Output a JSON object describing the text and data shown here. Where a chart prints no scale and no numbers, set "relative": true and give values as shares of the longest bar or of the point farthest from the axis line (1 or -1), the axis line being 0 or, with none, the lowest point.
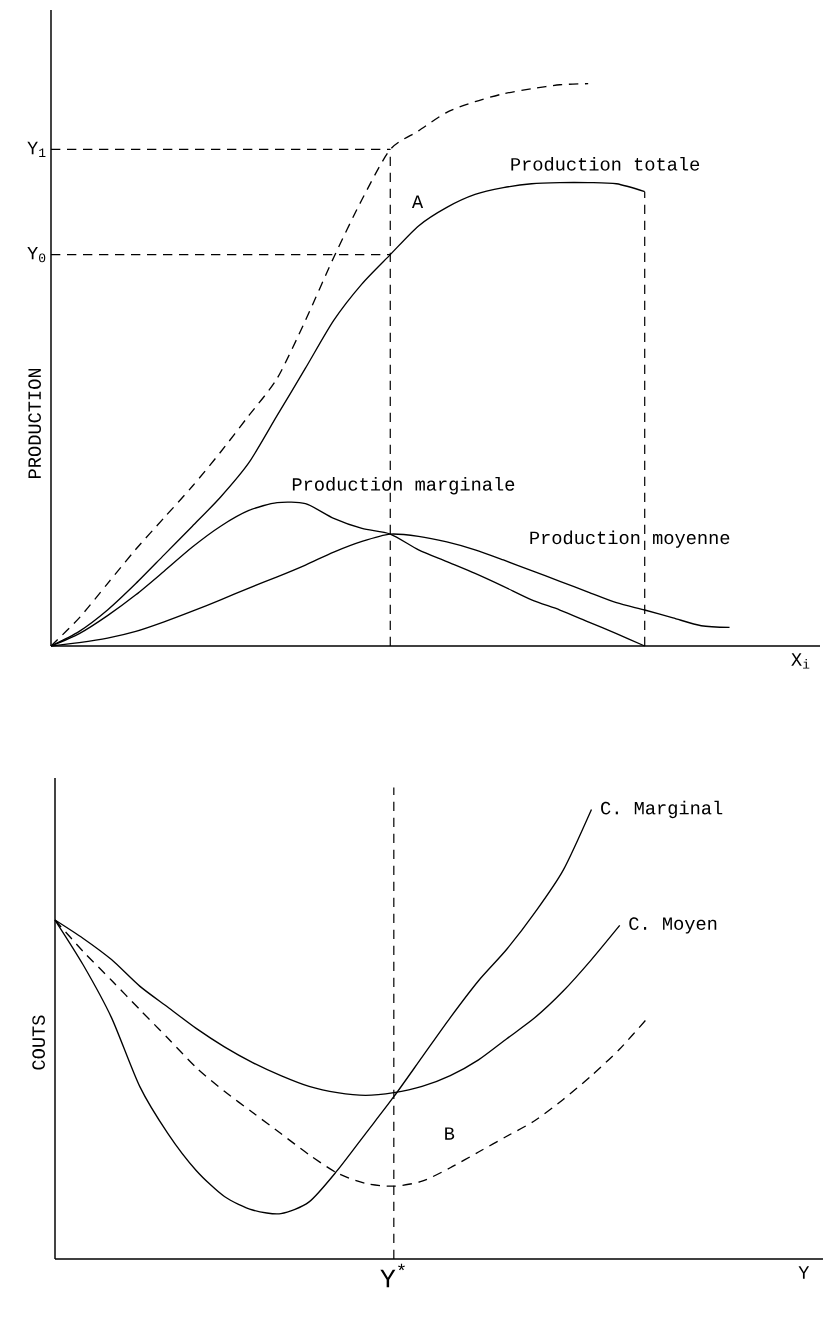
{
  "chart_data": [
    {
      "type": "line",
      "relative": true,
      "xlabel": "X$_{i}$",
      "ylabel": "PRODUCTION",
      "categories": [
        null,
        null,
        null,
        null,
        null,
        null,
        null,
        null,
        null,
        null,
        null,
        null,
        null,
        null,
        null,
        null,
        null,
        null,
        null,
        null,
        null,
        null,
        null,
        null,
        null,
        null,
        null,
        null
      ],
      "series": [
        {
          "color": "#000000",
          "line_style": "dashed",
          "values": [
            0,
            0.05,
            0.111,
            0.172,
            0.228,
            0.284,
            0.345,
            0.41,
            0.476,
            0.579,
            0.691,
            0.794,
            0.883,
            0.916,
            0.949,
            0.968,
            0.982,
            0.991,
            0.998,
            1,
            null,
            null,
            null,
            null,
            null,
            null,
            null,
            null
          ]
        },
        {
          "name": "Production totale",
          "color": "#000000",
          "line_style": "solid",
          "values": [
            0,
            0.026,
            0.064,
            0.111,
            0.162,
            0.213,
            0.265,
            0.326,
            0.41,
            0.494,
            0.579,
            0.644,
            0.696,
            0.747,
            0.78,
            0.803,
            0.815,
            0.822,
            0.824,
            0.824,
            0.822,
            0.808,
            null,
            null,
            null,
            null,
            null,
            null
          ]
        },
        {
          "name": "Production marginale",
          "color": "#000000",
          "line_style": "solid",
          "values": [
            0,
            0.022,
            0.054,
            0.091,
            0.133,
            0.176,
            0.213,
            0.241,
            0.255,
            0.253,
            0.227,
            0.209,
            0.199,
            0.171,
            0.15,
            0.129,
            0.106,
            0.082,
            0.064,
            0.043,
            0.022,
            0,
            null,
            null,
            null,
            null,
            null,
            null
          ]
        },
        {
          "name": "Production moyenne",
          "color": "#000000",
          "line_style": "solid",
          "values": [
            0,
            0.006,
            0.014,
            0.026,
            0.043,
            0.062,
            0.082,
            0.103,
            0.123,
            0.144,
            0.167,
            0.186,
            0.199,
            0.195,
            0.185,
            0.171,
            0.153,
            0.134,
            0.115,
            0.096,
            0.077,
            0.064,
            0.05,
            0.036,
            0.033,
            null,
            null,
            null
          ]
        }
      ],
      "ref_lines": [
        {
          "axis": "y",
          "value": 0.883,
          "label": "Y$_{1}$",
          "line_style": "dashed"
        },
        {
          "axis": "y",
          "value": 0.696,
          "label": "Y$_{0}$",
          "line_style": "dashed"
        }
      ],
      "annotations": [
        "A"
      ]
    },
    {
      "type": "line",
      "relative": true,
      "xlabel": "Y",
      "ylabel": "COUTS",
      "categories": [
        null,
        null,
        null,
        null,
        null,
        null,
        null,
        null,
        null,
        null,
        null,
        null,
        null,
        null,
        null,
        null,
        null,
        null,
        null,
        null,
        null,
        null,
        null,
        null,
        null,
        null,
        null,
        null
      ],
      "series": [
        {
          "name": "C. Marginal",
          "color": "#000000",
          "line_style": "solid",
          "values": [
            0.754,
            0.654,
            0.537,
            0.384,
            0.279,
            0.197,
            0.139,
            0.109,
            0.101,
            0.127,
            0.197,
            0.279,
            0.361,
            0.449,
            0.537,
            0.619,
            0.689,
            0.771,
            0.865,
            1,
            null,
            null,
            null,
            null,
            null,
            null,
            null,
            null
          ]
        },
        {
          "name": "C. Moyen",
          "color": "#000000",
          "line_style": "solid",
          "values": [
            0.754,
            0.713,
            0.666,
            0.607,
            0.56,
            0.513,
            0.472,
            0.437,
            0.408,
            0.384,
            0.37,
            0.364,
            0.37,
            0.384,
            0.408,
            0.443,
            0.49,
            0.537,
            0.596,
            0.666,
            0.742,
            null,
            null,
            null,
            null,
            null,
            null,
            null
          ]
        },
        {
          "color": "#000000",
          "line_style": "dashed",
          "values": [
            0.754,
            0.684,
            0.62,
            0.555,
            0.491,
            0.426,
            0.373,
            0.326,
            0.279,
            0.232,
            0.191,
            0.168,
            0.162,
            0.173,
            0.203,
            0.238,
            0.273,
            0.308,
            0.355,
            0.408,
            0.467,
            0.537,
            null,
            null,
            null,
            null,
            null,
            null
          ]
        }
      ],
      "annotations": [
        "B",
        "Y$^{*}$"
      ]
    }
  ]
}
